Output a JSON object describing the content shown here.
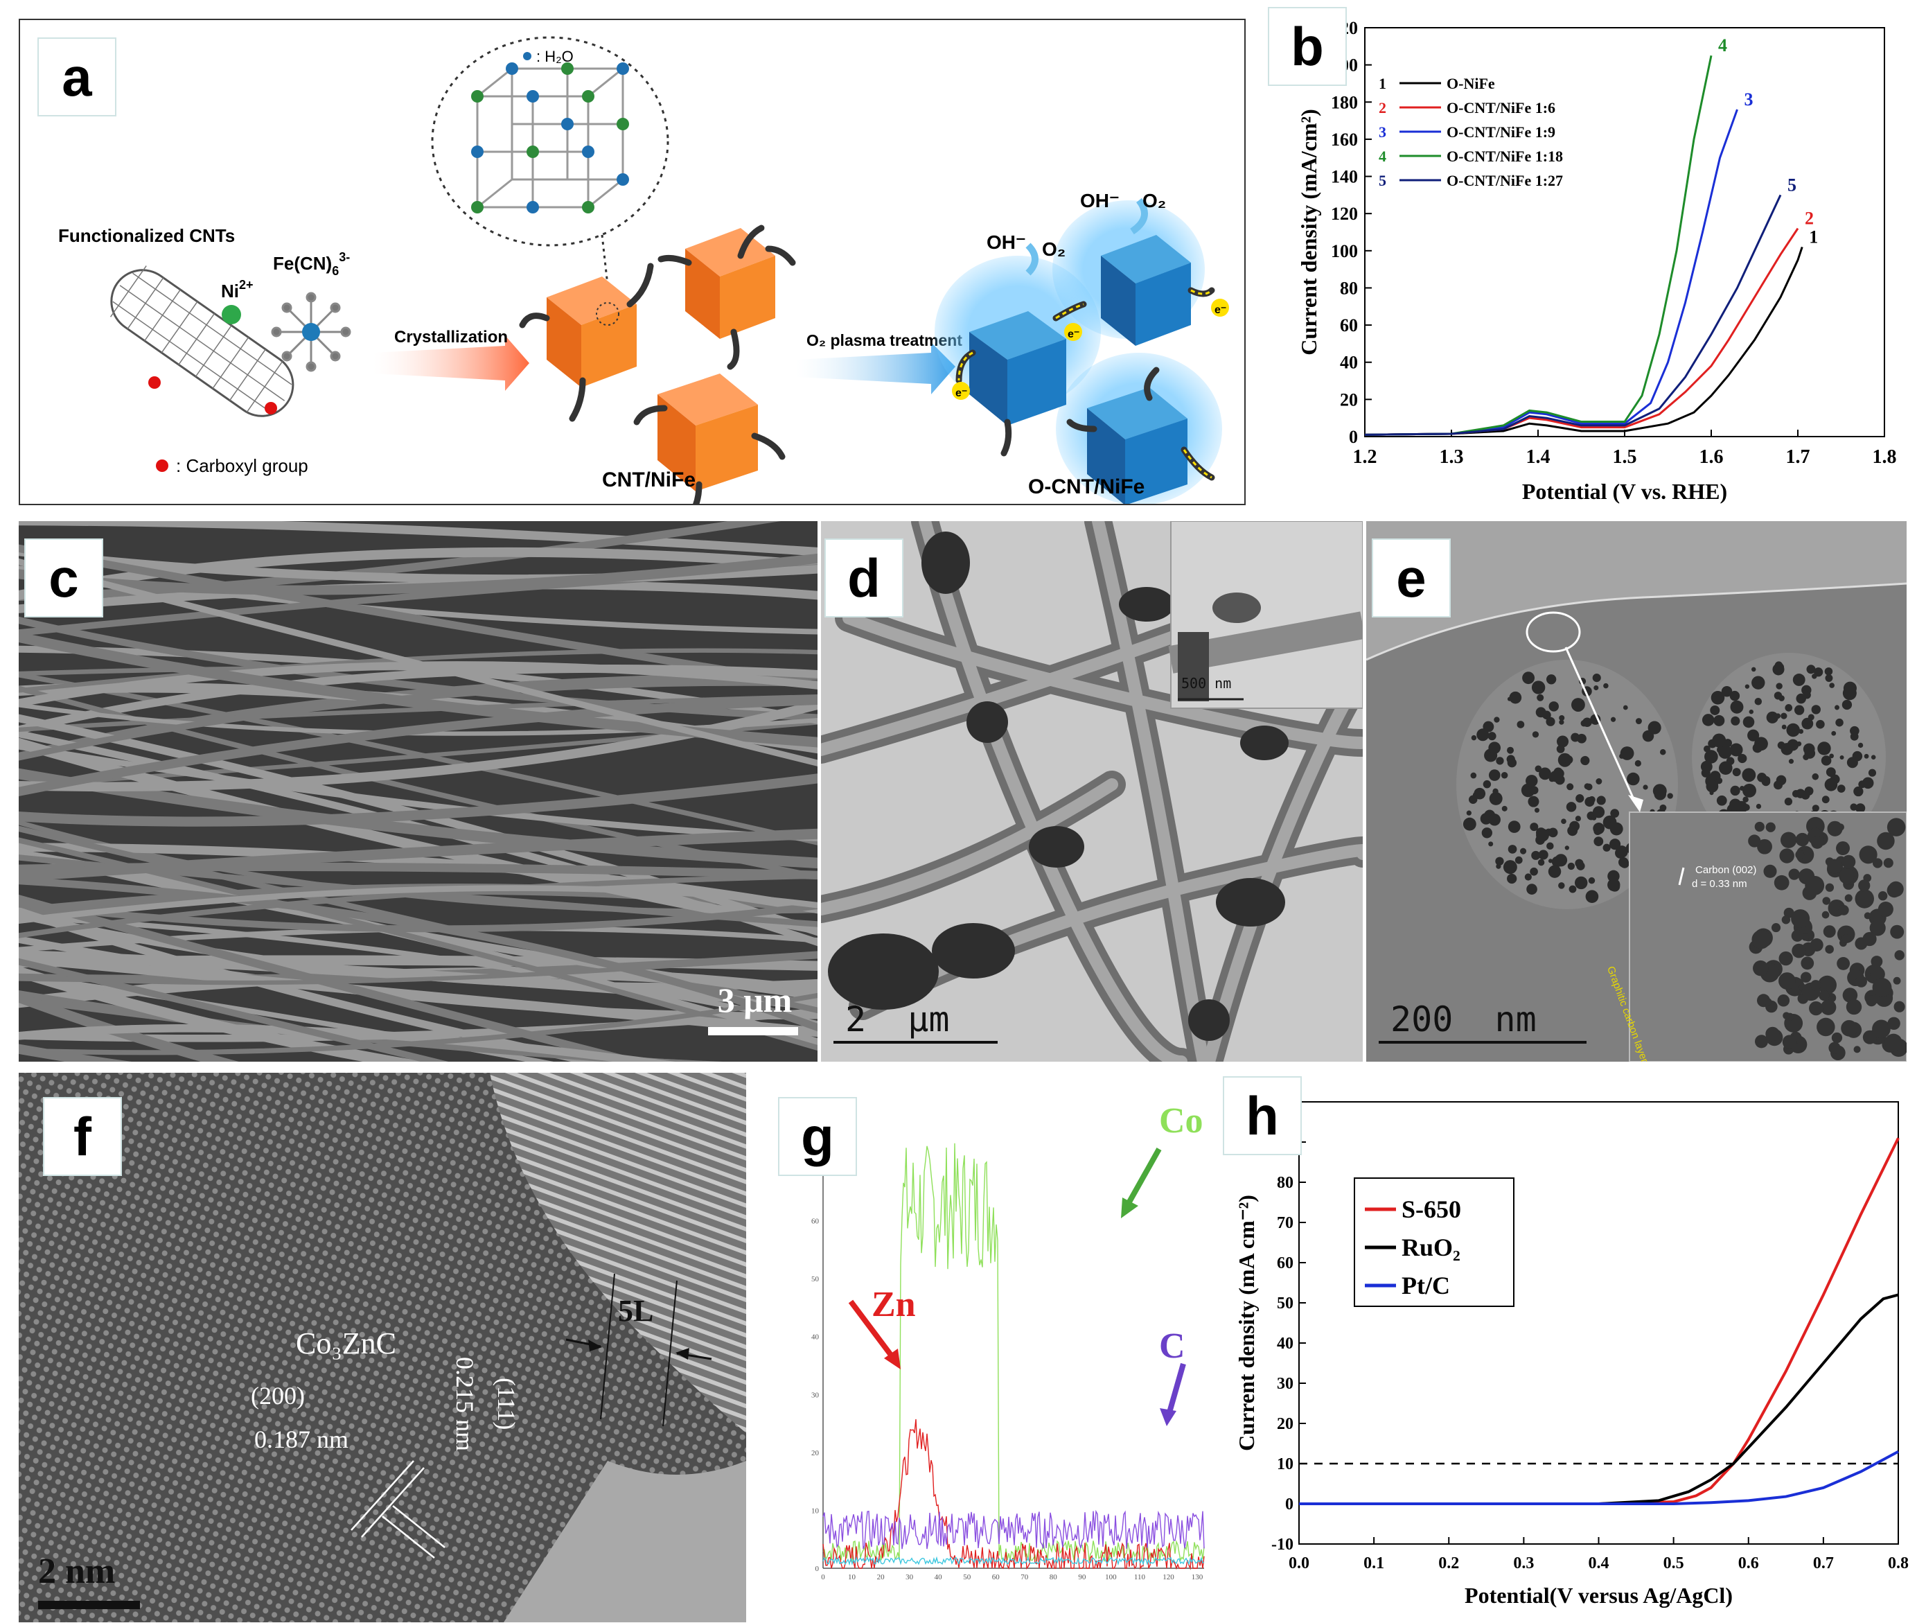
{
  "panels": {
    "a": {
      "label": "a",
      "title_cnts": "Functionalized CNTs",
      "ni_ion": "Ni",
      "ni_sup": "2+",
      "fe_cn": "Fe(CN)",
      "fe_sub": "6",
      "fe_sup": "3-",
      "h2o_legend": ": H₂O",
      "carboxyl_legend": ": Carboxyl group",
      "crystallization": "Crystallization",
      "plasma": "O₂ plasma treatment",
      "cnt_nife": "CNT/NiFe",
      "o_cnt_nife": "O-CNT/NiFe",
      "oh1": "OH⁻",
      "o2_1": "O₂",
      "oh2": "OH⁻",
      "o2_2": "O₂",
      "electron": "e⁻"
    },
    "b": {
      "label": "b",
      "chart_data": {
        "type": "line",
        "xlabel": "Potential (V vs. RHE)",
        "ylabel": "Current density (mA/cm²)",
        "xlim": [
          1.2,
          1.8
        ],
        "ylim": [
          0,
          220
        ],
        "xticks": [
          "1.2",
          "1.3",
          "1.4",
          "1.5",
          "1.6",
          "1.7",
          "1.8"
        ],
        "yticks": [
          "0",
          "20",
          "40",
          "60",
          "80",
          "100",
          "120",
          "140",
          "160",
          "180",
          "200",
          "220"
        ],
        "legend_position": "top-left",
        "series": [
          {
            "num": "1",
            "name": "O-NiFe",
            "color": "#000000",
            "x": [
              1.2,
              1.3,
              1.36,
              1.39,
              1.41,
              1.45,
              1.5,
              1.55,
              1.58,
              1.6,
              1.62,
              1.65,
              1.68,
              1.7,
              1.705
            ],
            "y": [
              1,
              1.5,
              3,
              7,
              6,
              3,
              3,
              7,
              13,
              22,
              33,
              52,
              75,
              95,
              102
            ]
          },
          {
            "num": "2",
            "name": "O-CNT/NiFe 1:6",
            "color": "#e02020",
            "x": [
              1.2,
              1.3,
              1.36,
              1.39,
              1.41,
              1.45,
              1.5,
              1.54,
              1.57,
              1.6,
              1.62,
              1.65,
              1.68,
              1.7
            ],
            "y": [
              1,
              1.5,
              4,
              10,
              9,
              5,
              5,
              12,
              24,
              38,
              52,
              75,
              98,
              112
            ]
          },
          {
            "num": "3",
            "name": "O-CNT/NiFe 1:9",
            "color": "#1a2fd6",
            "x": [
              1.2,
              1.3,
              1.36,
              1.39,
              1.41,
              1.45,
              1.5,
              1.53,
              1.55,
              1.57,
              1.59,
              1.61,
              1.63
            ],
            "y": [
              1,
              1.5,
              5,
              13,
              12,
              7,
              7,
              18,
              40,
              72,
              110,
              150,
              176
            ]
          },
          {
            "num": "4",
            "name": "O-CNT/NiFe 1:18",
            "color": "#1e8c2a",
            "x": [
              1.2,
              1.3,
              1.36,
              1.39,
              1.41,
              1.45,
              1.5,
              1.52,
              1.54,
              1.56,
              1.58,
              1.6
            ],
            "y": [
              1,
              1.5,
              6,
              14,
              13,
              8,
              8,
              22,
              55,
              100,
              160,
              205
            ]
          },
          {
            "num": "5",
            "name": "O-CNT/NiFe 1:27",
            "color": "#101f7a",
            "x": [
              1.2,
              1.3,
              1.36,
              1.39,
              1.41,
              1.45,
              1.5,
              1.54,
              1.57,
              1.6,
              1.63,
              1.66,
              1.68
            ],
            "y": [
              1,
              1.5,
              4,
              11,
              10,
              6,
              6,
              15,
              32,
              55,
              80,
              110,
              130
            ]
          }
        ]
      }
    },
    "c": {
      "label": "c",
      "scale": "3 μm"
    },
    "d": {
      "label": "d",
      "scale": "2  μm",
      "inset_scale": "500 nm"
    },
    "e": {
      "label": "e",
      "scale": "200  nm",
      "carbon_label": "Carbon (002)",
      "d_spacing": "d = 0.33 nm",
      "graphitic": "Graphitic carbon layer"
    },
    "f": {
      "label": "f",
      "phase": "Co₃ZnC",
      "plane200": "(200)",
      "plane111": "(111)",
      "spacing1": "0.187 nm",
      "spacing2": "0.215 nm",
      "layers": "5L",
      "scale": "2 nm"
    },
    "g": {
      "label": "g",
      "co": "Co",
      "zn": "Zn",
      "c": "C",
      "yticks": [
        "0",
        "10",
        "20",
        "30",
        "40",
        "50",
        "60",
        "70"
      ],
      "xticks": [
        "0",
        "10",
        "20",
        "30",
        "40",
        "50",
        "60",
        "70",
        "80",
        "90",
        "100",
        "110",
        "120",
        "130"
      ],
      "colors": {
        "co": "#8fe05a",
        "zn": "#e02020",
        "c": "#8a4fe0"
      }
    },
    "h": {
      "label": "h",
      "chart_data": {
        "type": "line",
        "xlabel": "Potential(V versus Ag/AgCl)",
        "ylabel": "Current density (mA cm⁻²)",
        "xlim": [
          0.0,
          0.8
        ],
        "ylim": [
          -10,
          100
        ],
        "xticks": [
          "0.0",
          "0.1",
          "0.2",
          "0.3",
          "0.4",
          "0.5",
          "0.6",
          "0.7",
          "0.8"
        ],
        "yticks": [
          "-10",
          "0",
          "10",
          "20",
          "30",
          "40",
          "50",
          "60",
          "70",
          "80",
          "90",
          "100"
        ],
        "reference_line": 10,
        "legend_position": "top-left",
        "series": [
          {
            "name": "S-650",
            "color": "#e02020",
            "x": [
              0,
              0.4,
              0.5,
              0.53,
              0.55,
              0.58,
              0.6,
              0.65,
              0.7,
              0.75,
              0.8
            ],
            "y": [
              0,
              0,
              0.5,
              2,
              4,
              10,
              16,
              33,
              52,
              72,
              91
            ]
          },
          {
            "name": "RuO₂",
            "color": "#000000",
            "x": [
              0,
              0.4,
              0.48,
              0.52,
              0.55,
              0.58,
              0.6,
              0.65,
              0.7,
              0.75,
              0.78,
              0.8
            ],
            "y": [
              0,
              0,
              0.8,
              3,
              6,
              10,
              14,
              24,
              35,
              46,
              51,
              52
            ]
          },
          {
            "name": "Pt/C",
            "color": "#1a2fd6",
            "x": [
              0,
              0.4,
              0.5,
              0.55,
              0.6,
              0.65,
              0.7,
              0.75,
              0.8
            ],
            "y": [
              0,
              0,
              0,
              0.3,
              0.8,
              1.8,
              4,
              8,
              13
            ]
          }
        ]
      }
    }
  }
}
